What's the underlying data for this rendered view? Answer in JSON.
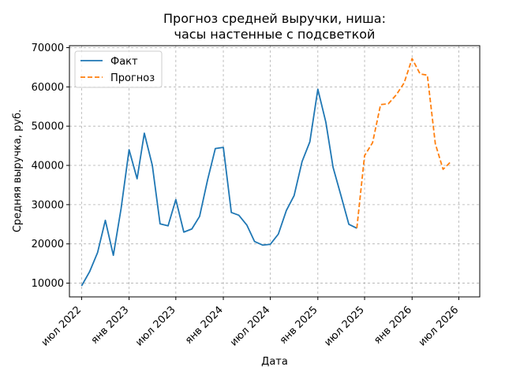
{
  "chart_data": {
    "type": "line",
    "title_line1": "Прогноз средней выручки, ниша:",
    "title_line2": "часы настенные с подсветкой",
    "xlabel": "Дата",
    "ylabel": "Средняя выручка, руб.",
    "ylim": [
      6500,
      70500
    ],
    "yticks": [
      10000,
      20000,
      30000,
      40000,
      50000,
      60000,
      70000
    ],
    "xlim": [
      "2022-05-15",
      "2026-09-20"
    ],
    "xticks": [
      {
        "date": "2022-07-01",
        "label": "июл 2022"
      },
      {
        "date": "2023-01-01",
        "label": "янв 2023"
      },
      {
        "date": "2023-07-01",
        "label": "июл 2023"
      },
      {
        "date": "2024-01-01",
        "label": "янв 2024"
      },
      {
        "date": "2024-07-01",
        "label": "июл 2024"
      },
      {
        "date": "2025-01-01",
        "label": "янв 2025"
      },
      {
        "date": "2025-07-01",
        "label": "июл 2025"
      },
      {
        "date": "2026-01-01",
        "label": "янв 2026"
      },
      {
        "date": "2026-07-01",
        "label": "июл 2026"
      }
    ],
    "grid": true,
    "legend_position": "top-left",
    "series": [
      {
        "name": "Факт",
        "color": "#1f77b4",
        "style": "solid",
        "points": [
          [
            "2022-07-01",
            9300
          ],
          [
            "2022-08-01",
            12900
          ],
          [
            "2022-09-01",
            17800
          ],
          [
            "2022-10-01",
            26000
          ],
          [
            "2022-11-01",
            17100
          ],
          [
            "2022-12-01",
            29000
          ],
          [
            "2023-01-01",
            44000
          ],
          [
            "2023-02-01",
            36600
          ],
          [
            "2023-03-01",
            48200
          ],
          [
            "2023-04-01",
            40000
          ],
          [
            "2023-05-01",
            25100
          ],
          [
            "2023-06-01",
            24600
          ],
          [
            "2023-07-01",
            31300
          ],
          [
            "2023-08-01",
            23000
          ],
          [
            "2023-09-01",
            23800
          ],
          [
            "2023-10-01",
            27000
          ],
          [
            "2023-11-01",
            36300
          ],
          [
            "2023-12-01",
            44300
          ],
          [
            "2024-01-01",
            44600
          ],
          [
            "2024-02-01",
            28000
          ],
          [
            "2024-03-01",
            27300
          ],
          [
            "2024-04-01",
            24800
          ],
          [
            "2024-05-01",
            20600
          ],
          [
            "2024-06-01",
            19700
          ],
          [
            "2024-07-01",
            19900
          ],
          [
            "2024-08-01",
            22500
          ],
          [
            "2024-09-01",
            28500
          ],
          [
            "2024-10-01",
            32300
          ],
          [
            "2024-11-01",
            41000
          ],
          [
            "2024-12-01",
            46000
          ],
          [
            "2025-01-01",
            59400
          ],
          [
            "2025-02-01",
            51000
          ],
          [
            "2025-03-01",
            39500
          ],
          [
            "2025-04-01",
            32200
          ],
          [
            "2025-05-01",
            25000
          ],
          [
            "2025-06-01",
            24000
          ]
        ]
      },
      {
        "name": "Прогноз",
        "color": "#ff7f0e",
        "style": "dashed",
        "points": [
          [
            "2025-06-01",
            24000
          ],
          [
            "2025-07-01",
            42500
          ],
          [
            "2025-08-01",
            45800
          ],
          [
            "2025-09-01",
            55500
          ],
          [
            "2025-10-01",
            55700
          ],
          [
            "2025-11-01",
            58000
          ],
          [
            "2025-12-01",
            61000
          ],
          [
            "2026-01-01",
            67200
          ],
          [
            "2026-02-01",
            63300
          ],
          [
            "2026-03-01",
            63000
          ],
          [
            "2026-04-01",
            45500
          ],
          [
            "2026-05-01",
            39000
          ],
          [
            "2026-06-01",
            41000
          ]
        ]
      }
    ]
  }
}
